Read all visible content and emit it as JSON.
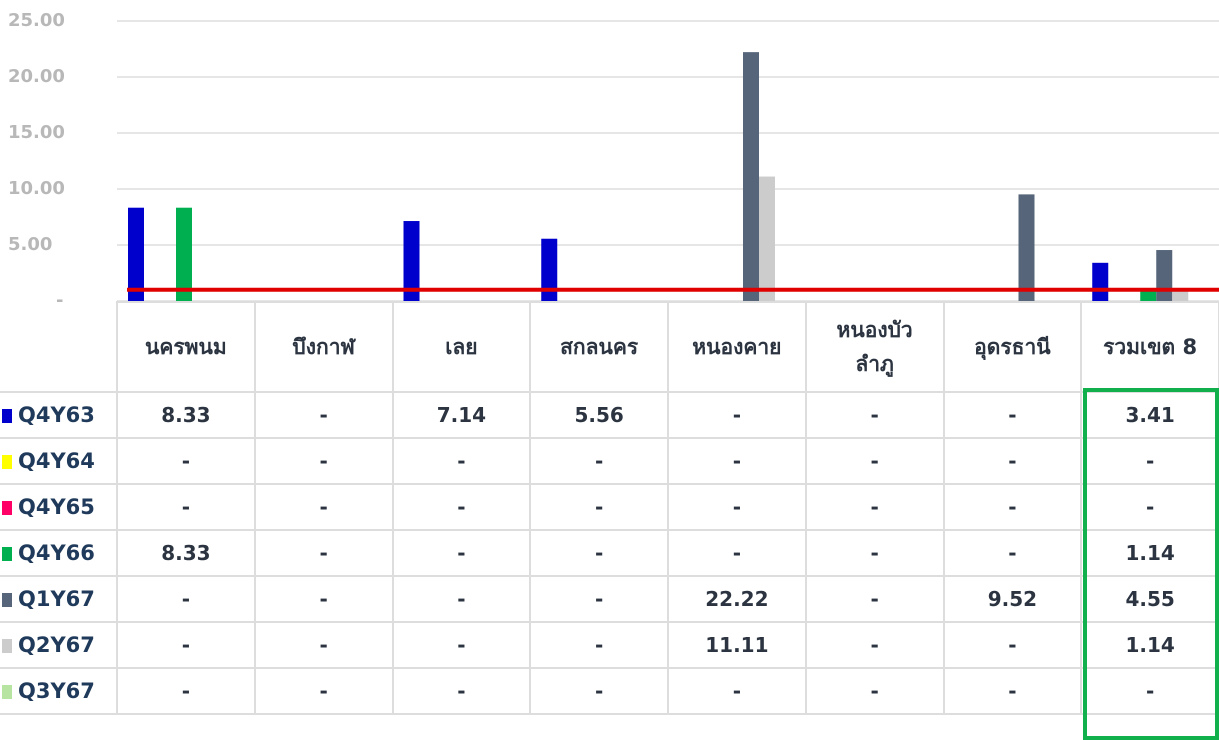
{
  "chart_data": {
    "type": "bar",
    "categories": [
      "นครพนม",
      "บึงกาฬ",
      "เลย",
      "สกลนคร",
      "หนองคาย",
      "หนองบัว\nลำภู",
      "อุดรธานี",
      "รวมเขต 8"
    ],
    "series": [
      {
        "name": "Q4Y63",
        "color": "#0000cc",
        "values": [
          8.33,
          null,
          7.14,
          5.56,
          null,
          null,
          null,
          3.41
        ],
        "value_labels": [
          "8.33",
          "-",
          "7.14",
          "5.56",
          "-",
          "-",
          "-",
          "3.41"
        ]
      },
      {
        "name": "Q4Y64",
        "color": "#ffff00",
        "values": [
          null,
          null,
          null,
          null,
          null,
          null,
          null,
          null
        ],
        "value_labels": [
          "-",
          "-",
          "-",
          "-",
          "-",
          "-",
          "-",
          "-"
        ]
      },
      {
        "name": "Q4Y65",
        "color": "#ff0066",
        "values": [
          null,
          null,
          null,
          null,
          null,
          null,
          null,
          null
        ],
        "value_labels": [
          "-",
          "-",
          "-",
          "-",
          "-",
          "-",
          "-",
          "-"
        ]
      },
      {
        "name": "Q4Y66",
        "color": "#00b050",
        "values": [
          8.33,
          null,
          null,
          null,
          null,
          null,
          null,
          1.14
        ],
        "value_labels": [
          "8.33",
          "-",
          "-",
          "-",
          "-",
          "-",
          "-",
          "1.14"
        ]
      },
      {
        "name": "Q1Y67",
        "color": "#56657a",
        "values": [
          null,
          null,
          null,
          null,
          22.22,
          null,
          9.52,
          4.55
        ],
        "value_labels": [
          "-",
          "-",
          "-",
          "-",
          "22.22",
          "-",
          "9.52",
          "4.55"
        ]
      },
      {
        "name": "Q2Y67",
        "color": "#cccccc",
        "values": [
          null,
          null,
          null,
          null,
          11.11,
          null,
          null,
          1.14
        ],
        "value_labels": [
          "-",
          "-",
          "-",
          "-",
          "11.11",
          "-",
          "-",
          "1.14"
        ]
      },
      {
        "name": "Q3Y67",
        "color": "#b7e4a0",
        "values": [
          null,
          null,
          null,
          null,
          null,
          null,
          null,
          null
        ],
        "value_labels": [
          "-",
          "-",
          "-",
          "-",
          "-",
          "-",
          "-",
          "-"
        ]
      }
    ],
    "ylim": [
      0,
      25
    ],
    "yticks": [
      {
        "value": 0,
        "label": "-"
      },
      {
        "value": 5,
        "label": "5.00"
      },
      {
        "value": 10,
        "label": "10.00"
      },
      {
        "value": 15,
        "label": "15.00"
      },
      {
        "value": 20,
        "label": "20.00"
      },
      {
        "value": 25,
        "label": "25.00"
      }
    ],
    "grid": true,
    "target_line": {
      "value": 1,
      "color": "#e00000"
    }
  }
}
